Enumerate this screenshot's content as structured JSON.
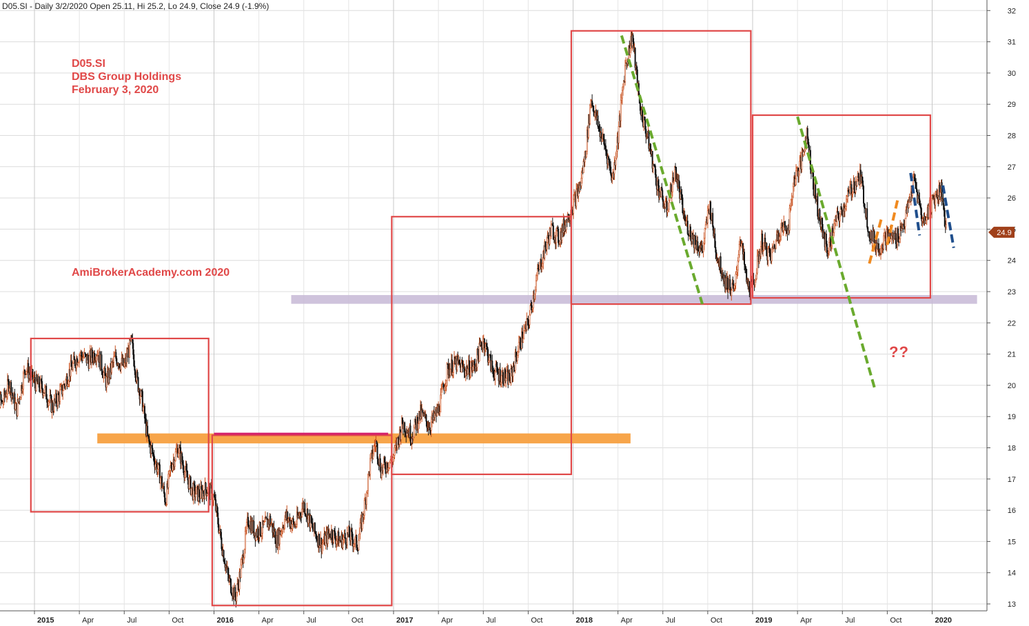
{
  "header": {
    "text": "D05.SI - Daily 3/2/2020 Open 25.11, Hi 25.2, Lo 24.9, Close 24.9 (-1.9%)"
  },
  "info": {
    "ticker": "D05.SI",
    "company": "DBS Group Holdings",
    "date": "February 3, 2020"
  },
  "watermark": "AmiBrokerAcademy.com  2020",
  "question_mark": "??",
  "colors": {
    "box": "#e04848",
    "support_orange": "#f7a040",
    "support_purple": "#c7b9d6",
    "trend_green": "#6aaa2e",
    "trend_orange": "#f08a20",
    "trend_blue": "#1f4e8c",
    "price_tag": "#a0401a",
    "candle_up": "#c8501e",
    "candle_down": "#111111"
  },
  "chart_data": {
    "type": "line",
    "style": "candlestick",
    "ylim": [
      12.8,
      32.3
    ],
    "y_ticks": [
      13,
      14,
      15,
      16,
      17,
      18,
      19,
      20,
      21,
      22,
      23,
      24,
      25,
      26,
      27,
      28,
      29,
      30,
      31,
      32
    ],
    "x_range": [
      2014.75,
      2020.33
    ],
    "x_ticks": [
      {
        "x": 2015.0,
        "label": "2015",
        "year": true
      },
      {
        "x": 2015.25,
        "label": "Apr",
        "year": false
      },
      {
        "x": 2015.5,
        "label": "Jul",
        "year": false
      },
      {
        "x": 2015.75,
        "label": "Oct",
        "year": false
      },
      {
        "x": 2016.0,
        "label": "2016",
        "year": true
      },
      {
        "x": 2016.25,
        "label": "Apr",
        "year": false
      },
      {
        "x": 2016.5,
        "label": "Jul",
        "year": false
      },
      {
        "x": 2016.75,
        "label": "Oct",
        "year": false
      },
      {
        "x": 2017.0,
        "label": "2017",
        "year": true
      },
      {
        "x": 2017.25,
        "label": "Apr",
        "year": false
      },
      {
        "x": 2017.5,
        "label": "Jul",
        "year": false
      },
      {
        "x": 2017.75,
        "label": "Oct",
        "year": false
      },
      {
        "x": 2018.0,
        "label": "2018",
        "year": true
      },
      {
        "x": 2018.25,
        "label": "Apr",
        "year": false
      },
      {
        "x": 2018.5,
        "label": "Jul",
        "year": false
      },
      {
        "x": 2018.75,
        "label": "Oct",
        "year": false
      },
      {
        "x": 2019.0,
        "label": "2019",
        "year": true
      },
      {
        "x": 2019.25,
        "label": "Apr",
        "year": false
      },
      {
        "x": 2019.5,
        "label": "Jul",
        "year": false
      },
      {
        "x": 2019.75,
        "label": "Oct",
        "year": false
      },
      {
        "x": 2020.0,
        "label": "2020",
        "year": true
      }
    ],
    "last_price": 24.9,
    "last_price_label": "24.9",
    "price_path": [
      [
        2014.75,
        18.4
      ],
      [
        2014.78,
        19.8
      ],
      [
        2014.82,
        19.4
      ],
      [
        2014.86,
        20.1
      ],
      [
        2014.9,
        19.2
      ],
      [
        2014.95,
        20.6
      ],
      [
        2015.0,
        20.1
      ],
      [
        2015.05,
        19.9
      ],
      [
        2015.1,
        19.3
      ],
      [
        2015.15,
        19.8
      ],
      [
        2015.2,
        20.5
      ],
      [
        2015.25,
        21.0
      ],
      [
        2015.3,
        20.8
      ],
      [
        2015.35,
        21.1
      ],
      [
        2015.4,
        20.1
      ],
      [
        2015.45,
        20.9
      ],
      [
        2015.5,
        20.6
      ],
      [
        2015.54,
        21.4
      ],
      [
        2015.57,
        20.2
      ],
      [
        2015.6,
        19.5
      ],
      [
        2015.63,
        18.3
      ],
      [
        2015.67,
        17.6
      ],
      [
        2015.7,
        17.1
      ],
      [
        2015.73,
        16.3
      ],
      [
        2015.76,
        17.4
      ],
      [
        2015.8,
        18.0
      ],
      [
        2015.84,
        17.2
      ],
      [
        2015.88,
        16.6
      ],
      [
        2015.92,
        16.5
      ],
      [
        2015.96,
        16.7
      ],
      [
        2016.0,
        16.4
      ],
      [
        2016.04,
        15.0
      ],
      [
        2016.08,
        13.8
      ],
      [
        2016.12,
        13.2
      ],
      [
        2016.15,
        14.1
      ],
      [
        2016.19,
        15.7
      ],
      [
        2016.23,
        15.3
      ],
      [
        2016.27,
        15.4
      ],
      [
        2016.31,
        15.7
      ],
      [
        2016.35,
        15.0
      ],
      [
        2016.4,
        15.8
      ],
      [
        2016.45,
        15.5
      ],
      [
        2016.5,
        16.2
      ],
      [
        2016.55,
        15.4
      ],
      [
        2016.6,
        14.9
      ],
      [
        2016.65,
        15.3
      ],
      [
        2016.7,
        15.0
      ],
      [
        2016.75,
        15.2
      ],
      [
        2016.8,
        14.9
      ],
      [
        2016.84,
        16.2
      ],
      [
        2016.87,
        17.5
      ],
      [
        2016.9,
        18.2
      ],
      [
        2016.93,
        17.3
      ],
      [
        2017.0,
        17.7
      ],
      [
        2017.05,
        18.8
      ],
      [
        2017.1,
        18.4
      ],
      [
        2017.15,
        19.1
      ],
      [
        2017.2,
        18.7
      ],
      [
        2017.25,
        19.2
      ],
      [
        2017.3,
        20.5
      ],
      [
        2017.35,
        20.7
      ],
      [
        2017.4,
        20.5
      ],
      [
        2017.45,
        20.6
      ],
      [
        2017.5,
        21.5
      ],
      [
        2017.55,
        20.5
      ],
      [
        2017.6,
        20.3
      ],
      [
        2017.65,
        20.2
      ],
      [
        2017.7,
        21.3
      ],
      [
        2017.75,
        22.0
      ],
      [
        2017.8,
        23.5
      ],
      [
        2017.85,
        24.5
      ],
      [
        2017.88,
        25.0
      ],
      [
        2017.92,
        24.7
      ],
      [
        2018.0,
        25.8
      ],
      [
        2018.04,
        26.4
      ],
      [
        2018.07,
        27.5
      ],
      [
        2018.1,
        29.2
      ],
      [
        2018.14,
        28.3
      ],
      [
        2018.18,
        27.6
      ],
      [
        2018.22,
        26.6
      ],
      [
        2018.25,
        28.0
      ],
      [
        2018.29,
        30.2
      ],
      [
        2018.33,
        31.2
      ],
      [
        2018.37,
        29.0
      ],
      [
        2018.42,
        27.8
      ],
      [
        2018.47,
        26.4
      ],
      [
        2018.52,
        25.6
      ],
      [
        2018.57,
        26.9
      ],
      [
        2018.62,
        25.3
      ],
      [
        2018.67,
        24.7
      ],
      [
        2018.72,
        24.3
      ],
      [
        2018.76,
        25.8
      ],
      [
        2018.8,
        24.2
      ],
      [
        2018.85,
        23.3
      ],
      [
        2018.9,
        23.0
      ],
      [
        2018.93,
        24.8
      ],
      [
        2018.97,
        23.2
      ],
      [
        2019.0,
        23.1
      ],
      [
        2019.05,
        24.6
      ],
      [
        2019.1,
        24.1
      ],
      [
        2019.15,
        25.0
      ],
      [
        2019.2,
        25.1
      ],
      [
        2019.23,
        26.6
      ],
      [
        2019.27,
        27.1
      ],
      [
        2019.3,
        28.1
      ],
      [
        2019.34,
        26.4
      ],
      [
        2019.38,
        25.1
      ],
      [
        2019.42,
        24.3
      ],
      [
        2019.46,
        25.2
      ],
      [
        2019.5,
        25.6
      ],
      [
        2019.55,
        26.3
      ],
      [
        2019.6,
        26.7
      ],
      [
        2019.65,
        24.9
      ],
      [
        2019.7,
        24.4
      ],
      [
        2019.75,
        24.8
      ],
      [
        2019.8,
        24.7
      ],
      [
        2019.85,
        25.3
      ],
      [
        2019.9,
        26.6
      ],
      [
        2019.95,
        25.2
      ],
      [
        2020.0,
        25.9
      ],
      [
        2020.05,
        26.3
      ],
      [
        2020.08,
        24.9
      ]
    ],
    "annotations": {
      "boxes": [
        {
          "x1": 2014.98,
          "x2": 2015.97,
          "y1": 15.95,
          "y2": 21.5
        },
        {
          "x1": 2015.99,
          "x2": 2016.99,
          "y1": 12.95,
          "y2": 18.4
        },
        {
          "x1": 2016.99,
          "x2": 2017.99,
          "y1": 17.15,
          "y2": 25.4
        },
        {
          "x1": 2017.99,
          "x2": 2018.99,
          "y1": 22.6,
          "y2": 31.35
        },
        {
          "x1": 2019.0,
          "x2": 2019.99,
          "y1": 22.8,
          "y2": 28.65
        }
      ],
      "bands": [
        {
          "x1": 2015.35,
          "x2": 2018.32,
          "y": 18.3,
          "thickness": 0.32,
          "color": "orange"
        },
        {
          "x1": 2016.43,
          "x2": 2020.25,
          "y": 22.75,
          "thickness": 0.28,
          "color": "purple"
        }
      ],
      "magenta_line": {
        "x1": 2016.0,
        "x2": 2016.97,
        "y": 18.45
      },
      "trend_lines": [
        {
          "x1": 2018.27,
          "y1": 31.2,
          "x2": 2018.72,
          "y2": 22.6,
          "color": "green"
        },
        {
          "x1": 2019.25,
          "y1": 28.6,
          "x2": 2019.68,
          "y2": 19.9,
          "color": "green"
        },
        {
          "x1": 2019.65,
          "y1": 23.9,
          "x2": 2019.72,
          "y2": 25.4,
          "color": "orange"
        },
        {
          "x1": 2019.75,
          "y1": 24.5,
          "x2": 2019.81,
          "y2": 26.0,
          "color": "orange"
        },
        {
          "x1": 2019.88,
          "y1": 26.8,
          "x2": 2019.93,
          "y2": 24.8,
          "color": "blue"
        },
        {
          "x1": 2020.06,
          "y1": 26.4,
          "x2": 2020.12,
          "y2": 24.4,
          "color": "blue"
        }
      ]
    }
  }
}
